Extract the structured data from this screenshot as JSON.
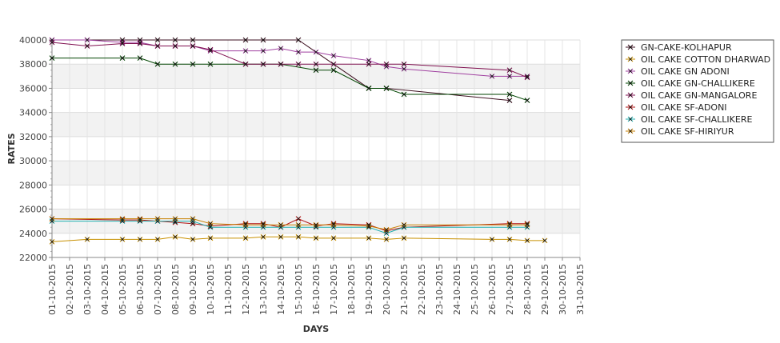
{
  "chart_data": {
    "type": "line",
    "title": "",
    "xlabel": "DAYS",
    "ylabel": "RATES",
    "ylim": [
      22000,
      40000
    ],
    "yticks": [
      22000,
      24000,
      26000,
      28000,
      30000,
      32000,
      34000,
      36000,
      38000,
      40000
    ],
    "categories": [
      "01-10-2015",
      "02-10-2015",
      "03-10-2015",
      "04-10-2015",
      "05-10-2015",
      "06-10-2015",
      "07-10-2015",
      "08-10-2015",
      "09-10-2015",
      "10-10-2015",
      "11-10-2015",
      "12-10-2015",
      "13-10-2015",
      "14-10-2015",
      "15-10-2015",
      "16-10-2015",
      "17-10-2015",
      "18-10-2015",
      "19-10-2015",
      "20-10-2015",
      "21-10-2015",
      "22-10-2015",
      "23-10-2015",
      "24-10-2015",
      "25-10-2015",
      "26-10-2015",
      "27-10-2015",
      "28-10-2015",
      "29-10-2015",
      "30-10-2015",
      "31-10-2015"
    ],
    "grid": true,
    "legend_position": "right",
    "series": [
      {
        "name": "GN-CAKE-KOLHAPUR",
        "color": "#3d1020",
        "points": [
          [
            "01-10-2015",
            40000
          ],
          [
            "03-10-2015",
            40000
          ],
          [
            "05-10-2015",
            40000
          ],
          [
            "06-10-2015",
            40000
          ],
          [
            "07-10-2015",
            40000
          ],
          [
            "08-10-2015",
            40000
          ],
          [
            "09-10-2015",
            40000
          ],
          [
            "12-10-2015",
            40000
          ],
          [
            "13-10-2015",
            40000
          ],
          [
            "15-10-2015",
            40000
          ],
          [
            "19-10-2015",
            36000
          ],
          [
            "20-10-2015",
            36000
          ],
          [
            "27-10-2015",
            35000
          ]
        ]
      },
      {
        "name": "OIL CAKE COTTON DHARWAD",
        "color": "#c89000",
        "points": [
          [
            "01-10-2015",
            23300
          ],
          [
            "03-10-2015",
            23500
          ],
          [
            "05-10-2015",
            23500
          ],
          [
            "06-10-2015",
            23500
          ],
          [
            "07-10-2015",
            23500
          ],
          [
            "08-10-2015",
            23700
          ],
          [
            "09-10-2015",
            23500
          ],
          [
            "10-10-2015",
            23600
          ],
          [
            "12-10-2015",
            23600
          ],
          [
            "13-10-2015",
            23700
          ],
          [
            "14-10-2015",
            23700
          ],
          [
            "15-10-2015",
            23700
          ],
          [
            "16-10-2015",
            23600
          ],
          [
            "17-10-2015",
            23600
          ],
          [
            "19-10-2015",
            23600
          ],
          [
            "20-10-2015",
            23500
          ],
          [
            "21-10-2015",
            23600
          ],
          [
            "26-10-2015",
            23500
          ],
          [
            "27-10-2015",
            23500
          ],
          [
            "28-10-2015",
            23400
          ],
          [
            "29-10-2015",
            23400
          ]
        ]
      },
      {
        "name": "OIL CAKE GN ADONI",
        "color": "#a040a0",
        "points": [
          [
            "01-10-2015",
            40000
          ],
          [
            "03-10-2015",
            40000
          ],
          [
            "05-10-2015",
            39800
          ],
          [
            "06-10-2015",
            39800
          ],
          [
            "07-10-2015",
            39500
          ],
          [
            "08-10-2015",
            39500
          ],
          [
            "09-10-2015",
            39500
          ],
          [
            "10-10-2015",
            39100
          ],
          [
            "12-10-2015",
            39100
          ],
          [
            "13-10-2015",
            39100
          ],
          [
            "14-10-2015",
            39300
          ],
          [
            "15-10-2015",
            39000
          ],
          [
            "16-10-2015",
            39000
          ],
          [
            "17-10-2015",
            38700
          ],
          [
            "19-10-2015",
            38300
          ],
          [
            "20-10-2015",
            37800
          ],
          [
            "21-10-2015",
            37600
          ],
          [
            "26-10-2015",
            37000
          ],
          [
            "27-10-2015",
            37000
          ],
          [
            "28-10-2015",
            37000
          ]
        ]
      },
      {
        "name": "OIL CAKE GN-CHALLIKERE",
        "color": "#004400",
        "points": [
          [
            "01-10-2015",
            38500
          ],
          [
            "05-10-2015",
            38500
          ],
          [
            "06-10-2015",
            38500
          ],
          [
            "07-10-2015",
            38000
          ],
          [
            "08-10-2015",
            38000
          ],
          [
            "09-10-2015",
            38000
          ],
          [
            "10-10-2015",
            38000
          ],
          [
            "12-10-2015",
            38000
          ],
          [
            "13-10-2015",
            38000
          ],
          [
            "14-10-2015",
            38000
          ],
          [
            "16-10-2015",
            37500
          ],
          [
            "17-10-2015",
            37500
          ],
          [
            "19-10-2015",
            36000
          ],
          [
            "20-10-2015",
            36000
          ],
          [
            "21-10-2015",
            35500
          ],
          [
            "27-10-2015",
            35500
          ],
          [
            "28-10-2015",
            35000
          ]
        ]
      },
      {
        "name": "OIL CAKE GN-MANGALORE",
        "color": "#801050",
        "points": [
          [
            "01-10-2015",
            39800
          ],
          [
            "03-10-2015",
            39500
          ],
          [
            "05-10-2015",
            39700
          ],
          [
            "06-10-2015",
            39700
          ],
          [
            "07-10-2015",
            39500
          ],
          [
            "08-10-2015",
            39500
          ],
          [
            "09-10-2015",
            39500
          ],
          [
            "10-10-2015",
            39200
          ],
          [
            "12-10-2015",
            38000
          ],
          [
            "13-10-2015",
            38000
          ],
          [
            "14-10-2015",
            38000
          ],
          [
            "15-10-2015",
            38000
          ],
          [
            "16-10-2015",
            38000
          ],
          [
            "17-10-2015",
            38000
          ],
          [
            "19-10-2015",
            38000
          ],
          [
            "20-10-2015",
            38000
          ],
          [
            "21-10-2015",
            38000
          ],
          [
            "27-10-2015",
            37500
          ],
          [
            "28-10-2015",
            36900
          ]
        ]
      },
      {
        "name": "OIL CAKE SF-ADONI",
        "color": "#b01010",
        "points": [
          [
            "01-10-2015",
            25200
          ],
          [
            "05-10-2015",
            25100
          ],
          [
            "06-10-2015",
            25100
          ],
          [
            "07-10-2015",
            25000
          ],
          [
            "08-10-2015",
            24900
          ],
          [
            "09-10-2015",
            24800
          ],
          [
            "10-10-2015",
            24600
          ],
          [
            "12-10-2015",
            24800
          ],
          [
            "13-10-2015",
            24800
          ],
          [
            "14-10-2015",
            24500
          ],
          [
            "15-10-2015",
            25200
          ],
          [
            "16-10-2015",
            24600
          ],
          [
            "17-10-2015",
            24800
          ],
          [
            "19-10-2015",
            24700
          ],
          [
            "20-10-2015",
            24200
          ],
          [
            "21-10-2015",
            24500
          ],
          [
            "27-10-2015",
            24800
          ],
          [
            "28-10-2015",
            24800
          ]
        ]
      },
      {
        "name": "OIL CAKE SF-CHALLIKERE",
        "color": "#20b0b0",
        "points": [
          [
            "01-10-2015",
            25000
          ],
          [
            "05-10-2015",
            25000
          ],
          [
            "06-10-2015",
            25000
          ],
          [
            "07-10-2015",
            25000
          ],
          [
            "08-10-2015",
            25000
          ],
          [
            "09-10-2015",
            25000
          ],
          [
            "10-10-2015",
            24500
          ],
          [
            "12-10-2015",
            24500
          ],
          [
            "13-10-2015",
            24500
          ],
          [
            "14-10-2015",
            24500
          ],
          [
            "15-10-2015",
            24500
          ],
          [
            "16-10-2015",
            24500
          ],
          [
            "17-10-2015",
            24500
          ],
          [
            "19-10-2015",
            24500
          ],
          [
            "20-10-2015",
            24000
          ],
          [
            "21-10-2015",
            24500
          ],
          [
            "27-10-2015",
            24500
          ],
          [
            "28-10-2015",
            24500
          ]
        ]
      },
      {
        "name": "OIL CAKE SF-HIRIYUR",
        "color": "#c88000",
        "points": [
          [
            "01-10-2015",
            25200
          ],
          [
            "05-10-2015",
            25200
          ],
          [
            "06-10-2015",
            25200
          ],
          [
            "07-10-2015",
            25200
          ],
          [
            "08-10-2015",
            25200
          ],
          [
            "09-10-2015",
            25200
          ],
          [
            "10-10-2015",
            24800
          ],
          [
            "12-10-2015",
            24700
          ],
          [
            "13-10-2015",
            24700
          ],
          [
            "14-10-2015",
            24700
          ],
          [
            "15-10-2015",
            24700
          ],
          [
            "16-10-2015",
            24700
          ],
          [
            "17-10-2015",
            24700
          ],
          [
            "19-10-2015",
            24600
          ],
          [
            "20-10-2015",
            24300
          ],
          [
            "21-10-2015",
            24700
          ],
          [
            "27-10-2015",
            24700
          ],
          [
            "28-10-2015",
            24700
          ]
        ]
      }
    ]
  }
}
